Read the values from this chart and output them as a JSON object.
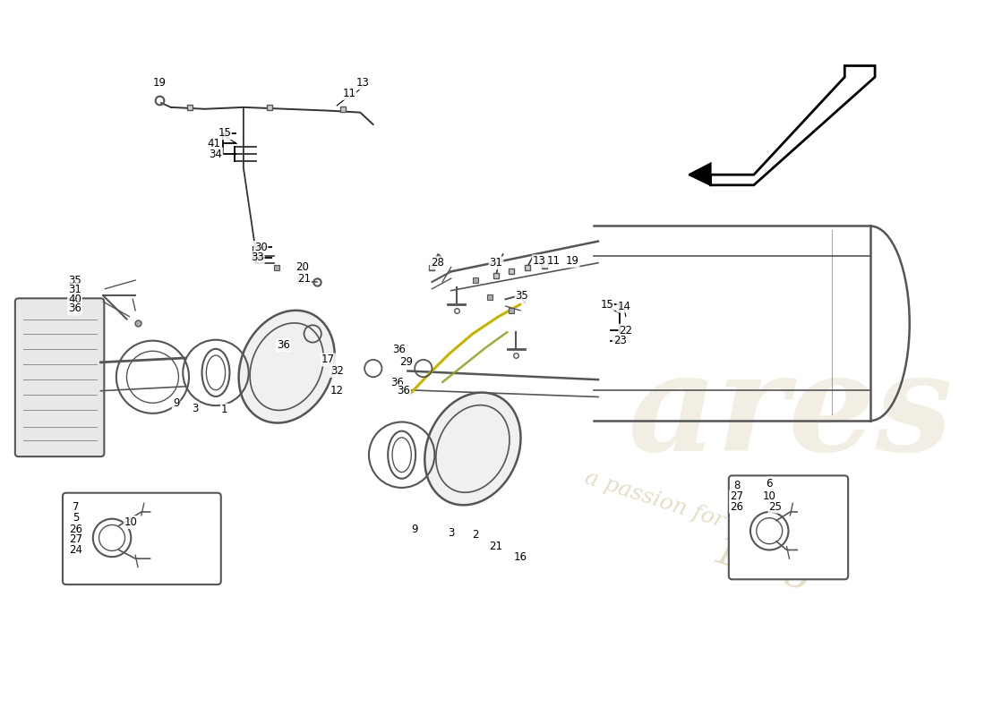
{
  "bg_color": "#ffffff",
  "watermark_color": "#d4c9a0",
  "line_color": "#333333",
  "component_color": "#555555"
}
